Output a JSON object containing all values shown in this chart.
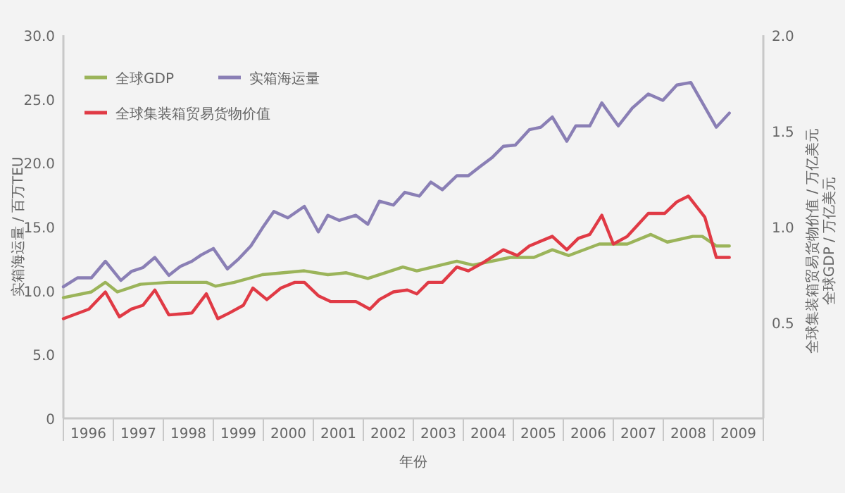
{
  "chart_data": {
    "type": "line",
    "xlabel": "年份",
    "ylabel": "实箱海运量 / 百万TEU",
    "y2label": "全球集装箱贸易货物价值 / 万亿美元全球GDP / 万亿美元",
    "xlim": [
      1996,
      2010
    ],
    "xticks": [
      {
        "value": 1996,
        "label": null
      },
      {
        "value": 1996.5,
        "label": "1996"
      },
      {
        "value": 1997,
        "label": null
      },
      {
        "value": 1997.5,
        "label": "1997"
      },
      {
        "value": 1998,
        "label": null
      },
      {
        "value": 1998.5,
        "label": "1998"
      },
      {
        "value": 1999,
        "label": null
      },
      {
        "value": 1999.5,
        "label": "1999"
      },
      {
        "value": 2000,
        "label": null
      },
      {
        "value": 2000.5,
        "label": "2000"
      },
      {
        "value": 2001,
        "label": null
      },
      {
        "value": 2001.5,
        "label": "2001"
      },
      {
        "value": 2002,
        "label": null
      },
      {
        "value": 2002.5,
        "label": "2002"
      },
      {
        "value": 2003,
        "label": null
      },
      {
        "value": 2003.5,
        "label": "2003"
      },
      {
        "value": 2004,
        "label": null
      },
      {
        "value": 2004.5,
        "label": "2004"
      },
      {
        "value": 2005,
        "label": null
      },
      {
        "value": 2005.5,
        "label": "2005"
      },
      {
        "value": 2006,
        "label": null
      },
      {
        "value": 2006.5,
        "label": "2006"
      },
      {
        "value": 2007,
        "label": null
      },
      {
        "value": 2007.5,
        "label": "2007"
      },
      {
        "value": 2008,
        "label": null
      },
      {
        "value": 2008.5,
        "label": "2008"
      },
      {
        "value": 2009,
        "label": null
      },
      {
        "value": 2009.5,
        "label": "2009"
      },
      {
        "value": 2010,
        "label": null
      }
    ],
    "ylim": [
      0,
      30
    ],
    "yticks": [
      0,
      {
        "value": 5,
        "label": "5.0"
      },
      {
        "value": 10,
        "label": "10.0"
      },
      {
        "value": 15,
        "label": "15.0"
      },
      {
        "value": 20,
        "label": "20.0"
      },
      {
        "value": 25,
        "label": "25.0"
      },
      {
        "value": 30,
        "label": "30.0"
      }
    ],
    "y2lim": [
      0,
      2
    ],
    "y2ticks": [
      {
        "value": 0.5,
        "label": "0.5"
      },
      {
        "value": 1,
        "label": "1.0"
      },
      {
        "value": 1.5,
        "label": "1.5"
      },
      {
        "value": 2,
        "label": "2.0"
      }
    ],
    "grid": false,
    "legend": "top left",
    "marker": "none",
    "line_style": "solid",
    "series": [
      {
        "name": "全球GDP",
        "color": "#9bb45a",
        "axis": "y2",
        "x": [
          1996.0,
          1996.56,
          1996.84,
          1997.08,
          1997.54,
          1998.11,
          1998.86,
          1999.04,
          1999.42,
          1999.98,
          2000.82,
          2001.29,
          2001.66,
          2002.09,
          2002.79,
          2003.07,
          2003.87,
          2004.19,
          2004.94,
          2005.41,
          2005.78,
          2006.11,
          2006.72,
          2007.28,
          2007.75,
          2008.08,
          2008.59,
          2008.78,
          2009.06,
          2009.32
        ],
        "values": [
          0.63,
          0.66,
          0.71,
          0.66,
          0.7,
          0.71,
          0.71,
          0.69,
          0.71,
          0.75,
          0.77,
          0.75,
          0.76,
          0.73,
          0.79,
          0.77,
          0.82,
          0.8,
          0.84,
          0.84,
          0.88,
          0.85,
          0.91,
          0.91,
          0.96,
          0.92,
          0.95,
          0.95,
          0.9,
          0.9
        ]
      },
      {
        "name": "实箱海运量",
        "color": "#8a7fb5",
        "x": [
          1996.0,
          1996.28,
          1996.56,
          1996.84,
          1997.15,
          1997.36,
          1997.59,
          1997.83,
          1998.11,
          1998.34,
          1998.57,
          1998.76,
          1999.0,
          1999.28,
          1999.51,
          1999.75,
          1999.98,
          2000.21,
          2000.49,
          2000.82,
          2001.1,
          2001.29,
          2001.52,
          2001.85,
          2002.09,
          2002.32,
          2002.6,
          2002.83,
          2003.12,
          2003.35,
          2003.58,
          2003.87,
          2004.1,
          2004.33,
          2004.57,
          2004.8,
          2005.04,
          2005.32,
          2005.55,
          2005.78,
          2006.07,
          2006.25,
          2006.53,
          2006.77,
          2007.1,
          2007.38,
          2007.7,
          2007.99,
          2008.27,
          2008.55,
          2009.06,
          2009.32
        ],
        "values": [
          10.3,
          11.0,
          11.0,
          12.3,
          10.8,
          11.5,
          11.8,
          12.6,
          11.2,
          11.9,
          12.3,
          12.8,
          13.3,
          11.7,
          12.5,
          13.5,
          14.9,
          16.2,
          15.7,
          16.6,
          14.6,
          15.9,
          15.5,
          15.9,
          15.2,
          17.0,
          16.7,
          17.7,
          17.4,
          18.5,
          17.9,
          19.0,
          19.0,
          19.7,
          20.4,
          21.3,
          21.4,
          22.6,
          22.8,
          23.6,
          21.7,
          22.9,
          22.9,
          24.7,
          22.9,
          24.3,
          25.4,
          24.9,
          26.1,
          26.3,
          22.8,
          23.9
        ]
      },
      {
        "name": "全球集装箱贸易货物价值",
        "color": "#e03a45",
        "axis": "y2",
        "x": [
          1996.0,
          1996.51,
          1996.84,
          1997.12,
          1997.36,
          1997.59,
          1997.83,
          1998.11,
          1998.57,
          1998.86,
          1999.09,
          1999.32,
          1999.6,
          1999.79,
          2000.07,
          2000.35,
          2000.63,
          2000.82,
          2001.1,
          2001.34,
          2001.85,
          2002.13,
          2002.32,
          2002.6,
          2002.88,
          2003.07,
          2003.3,
          2003.58,
          2003.87,
          2004.1,
          2004.38,
          2004.8,
          2005.08,
          2005.32,
          2005.78,
          2006.07,
          2006.3,
          2006.53,
          2006.77,
          2007.0,
          2007.28,
          2007.7,
          2008.03,
          2008.27,
          2008.5,
          2008.83,
          2009.06,
          2009.32
        ],
        "values": [
          0.52,
          0.57,
          0.66,
          0.53,
          0.57,
          0.59,
          0.67,
          0.54,
          0.55,
          0.65,
          0.52,
          0.55,
          0.59,
          0.68,
          0.62,
          0.68,
          0.71,
          0.71,
          0.64,
          0.61,
          0.61,
          0.57,
          0.62,
          0.66,
          0.67,
          0.65,
          0.71,
          0.71,
          0.79,
          0.77,
          0.81,
          0.88,
          0.85,
          0.9,
          0.95,
          0.88,
          0.94,
          0.96,
          1.06,
          0.91,
          0.95,
          1.07,
          1.07,
          1.13,
          1.16,
          1.05,
          0.84,
          0.84
        ]
      }
    ]
  }
}
